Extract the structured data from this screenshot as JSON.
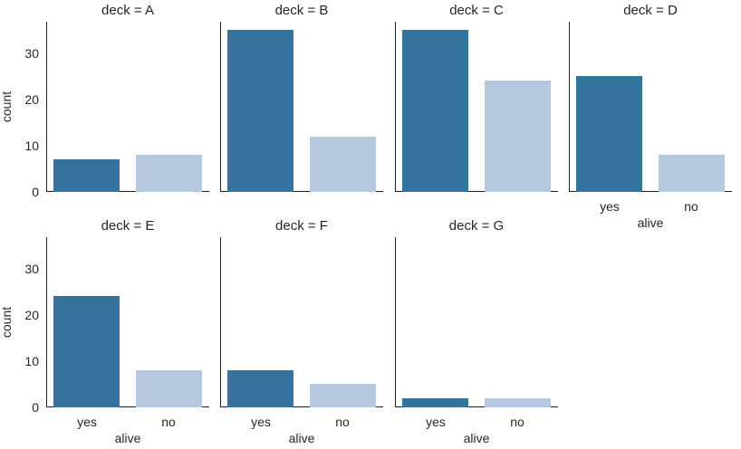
{
  "chart_data": {
    "type": "bar",
    "kind": "facet-count-plot",
    "facet_variable": "deck",
    "x_variable": "alive",
    "categories": [
      "yes",
      "no"
    ],
    "xlabel": "alive",
    "ylabel": "count",
    "ylim": [
      0,
      36.75
    ],
    "yticks": [
      0,
      10,
      20,
      30
    ],
    "grid": false,
    "legend": false,
    "facets": [
      {
        "title": "deck = A",
        "values": [
          7,
          8
        ]
      },
      {
        "title": "deck = B",
        "values": [
          35,
          12
        ]
      },
      {
        "title": "deck = C",
        "values": [
          35,
          24
        ]
      },
      {
        "title": "deck = D",
        "values": [
          25,
          8
        ]
      },
      {
        "title": "deck = E",
        "values": [
          24,
          8
        ]
      },
      {
        "title": "deck = F",
        "values": [
          8,
          5
        ]
      },
      {
        "title": "deck = G",
        "values": [
          2,
          2
        ]
      }
    ],
    "bar_colors": {
      "yes": "#33739C",
      "no": "#B5C8E0"
    },
    "axis_color": "#1F1F1F",
    "text_color": "#262626"
  }
}
